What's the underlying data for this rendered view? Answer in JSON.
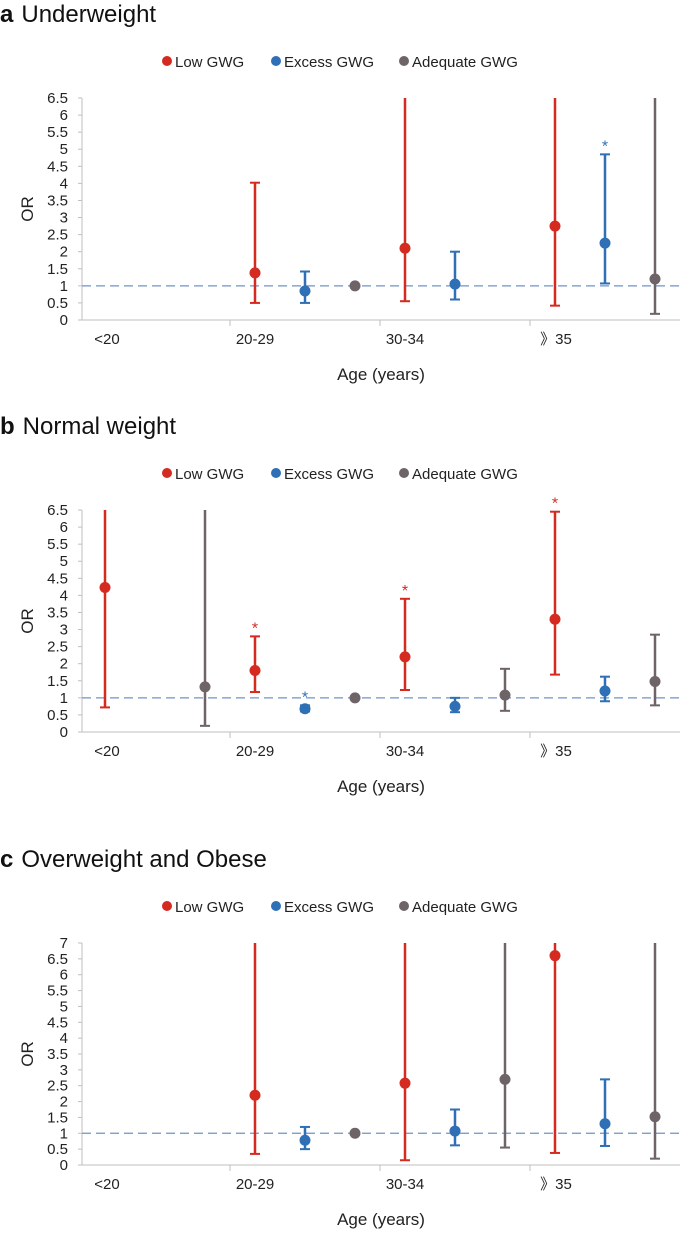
{
  "figure": {
    "legend": [
      {
        "label": "Low GWG",
        "color": "#d42a20"
      },
      {
        "label": "Excess GWG",
        "color": "#2e6fb5"
      },
      {
        "label": "Adequate GWG",
        "color": "#6e6468"
      }
    ],
    "reference_line": {
      "value": 1,
      "color": "#6f93c9"
    }
  },
  "chart_data": [
    {
      "panel_letter": "a",
      "title": "Underweight",
      "type": "scatter",
      "xlabel": "Age (years)",
      "ylabel": "OR",
      "categories": [
        "<20",
        "20-29",
        "30-34",
        "》35"
      ],
      "ylim": [
        0,
        6.5
      ],
      "yticks": [
        "0",
        "0.5",
        "1",
        "1.5",
        "2",
        "2.5",
        "3",
        "3.5",
        "4",
        "4.5",
        "5",
        "5.5",
        "6",
        "6.5"
      ],
      "series": [
        {
          "name": "Low GWG",
          "points": [
            null,
            {
              "or": 1.38,
              "low": 0.5,
              "high": 4.02
            },
            {
              "or": 2.1,
              "low": 0.55,
              "high": 6.5
            },
            {
              "or": 2.75,
              "low": 0.42,
              "high": 6.5
            }
          ]
        },
        {
          "name": "Excess GWG",
          "points": [
            null,
            {
              "or": 0.85,
              "low": 0.5,
              "high": 1.42
            },
            {
              "or": 1.05,
              "low": 0.6,
              "high": 2.0
            },
            {
              "or": 2.25,
              "low": 1.07,
              "high": 4.85,
              "star": "*"
            }
          ]
        },
        {
          "name": "Adequate GWG",
          "points": [
            null,
            {
              "or": 1.0
            },
            null,
            {
              "or": 1.2,
              "low": 0.18,
              "high": 6.5
            }
          ]
        }
      ]
    },
    {
      "panel_letter": "b",
      "title": "Normal weight",
      "type": "scatter",
      "xlabel": "Age (years)",
      "ylabel": "OR",
      "categories": [
        "<20",
        "20-29",
        "30-34",
        "》35"
      ],
      "ylim": [
        0,
        6.5
      ],
      "yticks": [
        "0",
        "0.5",
        "1",
        "1.5",
        "2",
        "2.5",
        "3",
        "3.5",
        "4",
        "4.5",
        "5",
        "5.5",
        "6",
        "6.5"
      ],
      "series": [
        {
          "name": "Low GWG",
          "points": [
            {
              "or": 4.23,
              "low": 0.72,
              "high": 6.5
            },
            {
              "or": 1.8,
              "low": 1.17,
              "high": 2.8,
              "star": "*"
            },
            {
              "or": 2.2,
              "low": 1.23,
              "high": 3.9,
              "star": "*"
            },
            {
              "or": 3.3,
              "low": 1.68,
              "high": 6.45,
              "star": "*"
            }
          ]
        },
        {
          "name": "Excess GWG",
          "points": [
            null,
            {
              "or": 0.68,
              "low": 0.6,
              "high": 0.78,
              "star": "*"
            },
            {
              "or": 0.75,
              "low": 0.58,
              "high": 1.0
            },
            {
              "or": 1.2,
              "low": 0.9,
              "high": 1.62
            }
          ]
        },
        {
          "name": "Adequate GWG",
          "points": [
            {
              "or": 1.32,
              "low": 0.18,
              "high": 6.5
            },
            {
              "or": 1.0
            },
            {
              "or": 1.08,
              "low": 0.62,
              "high": 1.85
            },
            {
              "or": 1.48,
              "low": 0.78,
              "high": 2.85
            }
          ]
        }
      ]
    },
    {
      "panel_letter": "c",
      "title": "Overweight and Obese",
      "type": "scatter",
      "xlabel": "Age (years)",
      "ylabel": "OR",
      "categories": [
        "<20",
        "20-29",
        "30-34",
        "》35"
      ],
      "ylim": [
        0,
        7
      ],
      "yticks": [
        "0",
        "0.5",
        "1",
        "1.5",
        "2",
        "2.5",
        "3",
        "3.5",
        "4",
        "4.5",
        "5",
        "5.5",
        "6",
        "6.5",
        "7"
      ],
      "series": [
        {
          "name": "Low GWG",
          "points": [
            null,
            {
              "or": 2.2,
              "low": 0.35,
              "high": 7.0
            },
            {
              "or": 2.58,
              "low": 0.15,
              "high": 7.0
            },
            {
              "or": 6.6,
              "low": 0.38,
              "high": 7.0
            }
          ]
        },
        {
          "name": "Excess GWG",
          "points": [
            null,
            {
              "or": 0.78,
              "low": 0.5,
              "high": 1.2
            },
            {
              "or": 1.07,
              "low": 0.62,
              "high": 1.75
            },
            {
              "or": 1.3,
              "low": 0.6,
              "high": 2.7
            }
          ]
        },
        {
          "name": "Adequate GWG",
          "points": [
            null,
            {
              "or": 1.0
            },
            {
              "or": 2.7,
              "low": 0.55,
              "high": 7.0
            },
            {
              "or": 1.52,
              "low": 0.2,
              "high": 7.0
            }
          ]
        }
      ]
    }
  ]
}
